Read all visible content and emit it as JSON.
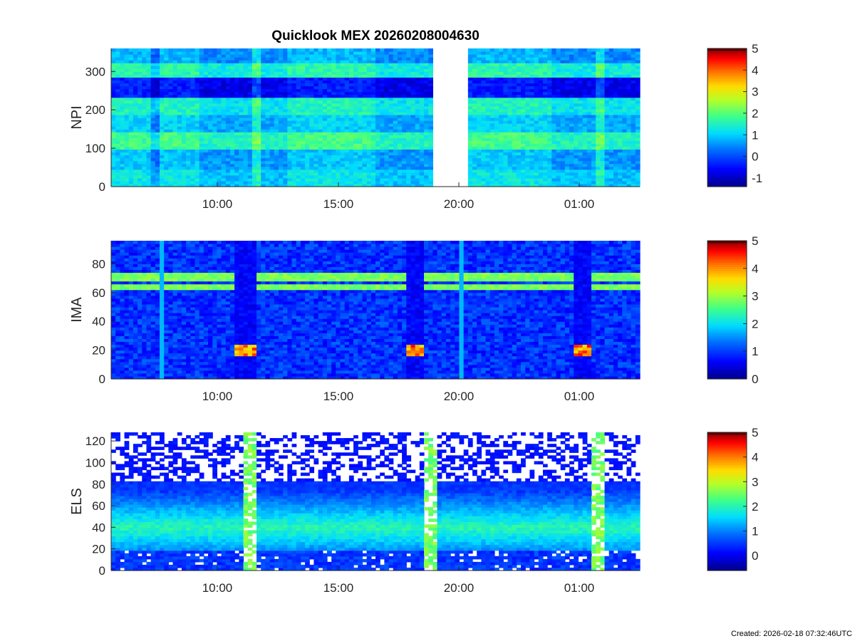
{
  "figure": {
    "title": "Quicklook MEX 20260208004630",
    "footer": "Created: 2026-02-18 07:32:46UTC"
  },
  "colormap": [
    "#00008f",
    "#0000ff",
    "#0060ff",
    "#00c0ff",
    "#20ff e0",
    "#80ff80",
    "#e0ff20",
    "#ffc000",
    "#ff6000",
    "#ff0000",
    "#c00000",
    "#000000"
  ],
  "chart_data": [
    {
      "type": "heatmap",
      "name": "NPI",
      "ylabel": "NPI",
      "ylim": [
        0,
        360
      ],
      "yticks": [
        0,
        100,
        200,
        300
      ],
      "x_ticklabels": [
        "10:00",
        "15:00",
        "20:00",
        "01:00"
      ],
      "colorbar_ticks": [
        -1,
        0,
        1,
        2,
        3,
        4,
        5
      ],
      "colorbar_range": [
        -1.4,
        5
      ],
      "data_gap": "≈18:50–20:20",
      "bands": [
        {
          "y": [
            0,
            45
          ],
          "value": 1.2
        },
        {
          "y": [
            45,
            95
          ],
          "value": 0.9
        },
        {
          "y": [
            95,
            145
          ],
          "value": 1.8
        },
        {
          "y": [
            145,
            185
          ],
          "value": 1.0
        },
        {
          "y": [
            185,
            235
          ],
          "value": 1.5
        },
        {
          "y": [
            235,
            285
          ],
          "value": -0.4
        },
        {
          "y": [
            285,
            320
          ],
          "value": 1.6
        },
        {
          "y": [
            320,
            360
          ],
          "value": 0.8
        }
      ]
    },
    {
      "type": "heatmap",
      "name": "IMA",
      "ylabel": "IMA",
      "ylim": [
        0,
        96
      ],
      "yticks": [
        0,
        20,
        40,
        60,
        80
      ],
      "x_ticklabels": [
        "10:00",
        "15:00",
        "20:00",
        "01:00"
      ],
      "colorbar_ticks": [
        0,
        1,
        2,
        3,
        4,
        5
      ],
      "colorbar_range": [
        0,
        5
      ],
      "features": [
        {
          "kind": "line",
          "y": 64,
          "value": 2.8
        },
        {
          "kind": "line",
          "y": 71,
          "value": 2.8
        },
        {
          "kind": "hot_spot",
          "y": 20,
          "value": 4.5
        }
      ]
    },
    {
      "type": "heatmap",
      "name": "ELS",
      "ylabel": "ELS",
      "ylim": [
        0,
        128
      ],
      "yticks": [
        0,
        20,
        40,
        60,
        80,
        100,
        120
      ],
      "x_ticklabels": [
        "10:00",
        "15:00",
        "20:00",
        "01:00"
      ],
      "colorbar_ticks": [
        0,
        1,
        2,
        3,
        4,
        5
      ],
      "colorbar_range": [
        -0.6,
        5
      ],
      "features": [
        {
          "kind": "band",
          "y": [
            25,
            82
          ],
          "peak_y": 40,
          "value": 2.0
        },
        {
          "kind": "noise",
          "y": [
            82,
            128
          ],
          "value": 0.0
        },
        {
          "kind": "noise",
          "y": [
            0,
            22
          ],
          "value": 0.0
        }
      ]
    }
  ]
}
